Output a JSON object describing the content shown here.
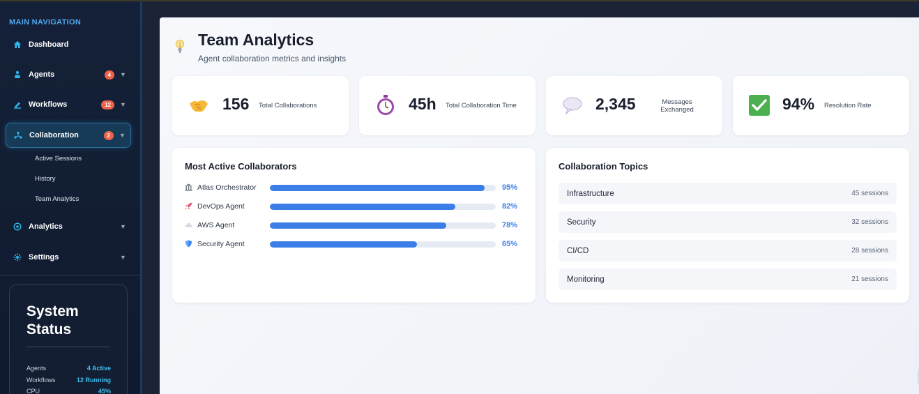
{
  "sidebar": {
    "heading": "MAIN NAVIGATION",
    "items": [
      {
        "label": "Dashboard",
        "icon": "home-icon",
        "badge": "",
        "caret": ""
      },
      {
        "label": "Agents",
        "icon": "agent-icon",
        "badge": "4",
        "caret": "▼"
      },
      {
        "label": "Workflows",
        "icon": "workflow-icon",
        "badge": "12",
        "caret": "▼"
      },
      {
        "label": "Collaboration",
        "icon": "collaboration-icon",
        "badge": "2",
        "caret": "▼"
      },
      {
        "label": "Analytics",
        "icon": "analytics-icon",
        "badge": "",
        "caret": "▼"
      },
      {
        "label": "Settings",
        "icon": "gear-icon",
        "badge": "",
        "caret": "▼"
      }
    ],
    "sub_items": [
      "Active Sessions",
      "History",
      "Team Analytics"
    ]
  },
  "system_status": {
    "title": "System Status",
    "rows": [
      {
        "key": "Agents",
        "value": "4 Active"
      },
      {
        "key": "Workflows",
        "value": "12 Running"
      },
      {
        "key": "CPU",
        "value": "45%"
      }
    ]
  },
  "page": {
    "icon": "lightbulb-icon",
    "title": "Team Analytics",
    "subtitle": "Agent collaboration metrics and insights"
  },
  "stats": [
    {
      "icon": "handshake-icon",
      "value": "156",
      "label": "Total Collaborations"
    },
    {
      "icon": "stopwatch-icon",
      "value": "45h",
      "label": "Total Collaboration Time"
    },
    {
      "icon": "speech-bubble-icon",
      "value": "2,345",
      "label": "Messages Exchanged"
    },
    {
      "icon": "check-mark-icon",
      "value": "94%",
      "label": "Resolution Rate"
    }
  ],
  "collaborators": {
    "title": "Most Active Collaborators",
    "items": [
      {
        "icon": "building-icon",
        "name": "Atlas Orchestrator",
        "pct_label": "95%",
        "pct": 95
      },
      {
        "icon": "rocket-icon",
        "name": "DevOps Agent",
        "pct_label": "82%",
        "pct": 82
      },
      {
        "icon": "cloud-icon",
        "name": "AWS Agent",
        "pct_label": "78%",
        "pct": 78
      },
      {
        "icon": "shield-icon",
        "name": "Security Agent",
        "pct_label": "65%",
        "pct": 65
      }
    ]
  },
  "topics": {
    "title": "Collaboration Topics",
    "items": [
      {
        "name": "Infrastructure",
        "count": "45 sessions"
      },
      {
        "name": "Security",
        "count": "32 sessions"
      },
      {
        "name": "CI/CD",
        "count": "28 sessions"
      },
      {
        "name": "Monitoring",
        "count": "21 sessions"
      }
    ]
  },
  "colors": {
    "accent": "#3b7ee8",
    "sidebar_heading": "#4fa8f0",
    "badge": "#f0614a",
    "status_value": "#3ec1f3"
  }
}
